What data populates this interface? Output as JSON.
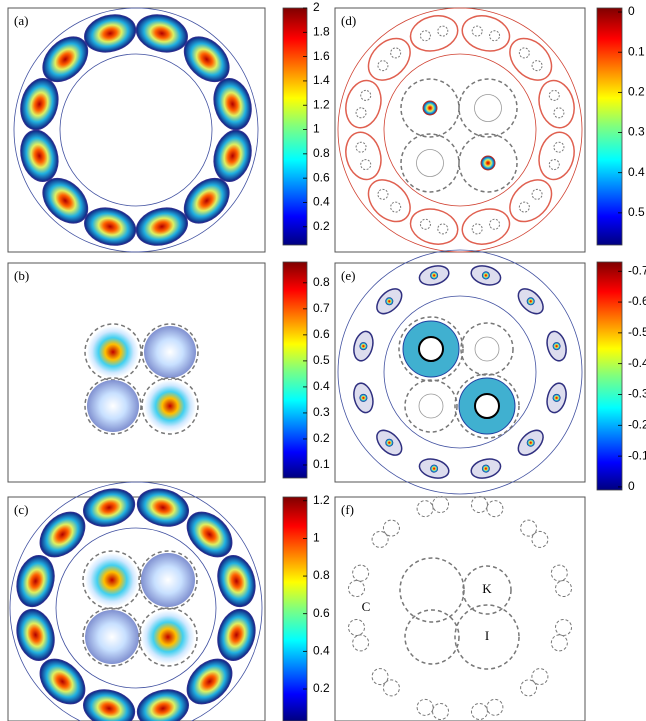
{
  "panels": [
    {
      "label": "(a)",
      "colorbar": {
        "lim": [
          0.05,
          2
        ],
        "ticks": [
          0.2,
          0.4,
          0.6,
          0.8,
          1,
          1.2,
          1.4,
          1.6,
          1.8,
          2
        ]
      }
    },
    {
      "label": "(b)",
      "colorbar": {
        "lim": [
          0.05,
          0.88
        ],
        "ticks": [
          0.1,
          0.2,
          0.3,
          0.4,
          0.5,
          0.6,
          0.7,
          0.8
        ]
      }
    },
    {
      "label": "(c)",
      "colorbar": {
        "lim": [
          0.03,
          1.22
        ],
        "ticks": [
          0.2,
          0.4,
          0.6,
          0.8,
          1,
          1.2
        ]
      }
    },
    {
      "label": "(d)",
      "colorbar": {
        "lim": [
          0.58,
          -0.01
        ],
        "ticks": [
          0,
          0.1,
          0.2,
          0.3,
          0.4,
          0.5
        ]
      }
    },
    {
      "label": "(e)",
      "colorbar": {
        "lim": [
          0.01,
          -0.73
        ],
        "ticks": [
          -0.7,
          -0.6,
          -0.5,
          -0.4,
          -0.3,
          -0.2,
          -0.1,
          0
        ]
      }
    },
    {
      "label": "(f)"
    }
  ],
  "annotations": [
    "K",
    "I",
    "C"
  ]
}
